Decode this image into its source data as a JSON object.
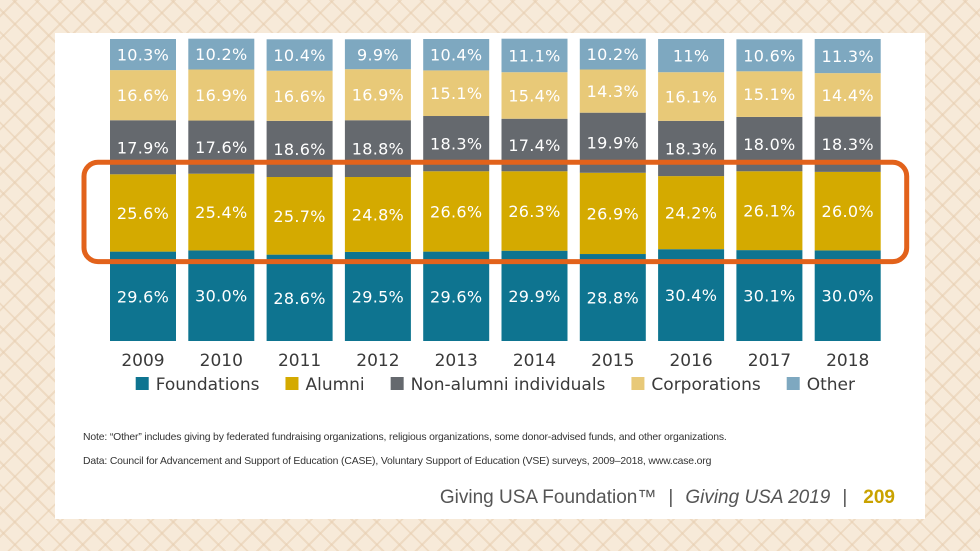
{
  "chart_data": {
    "type": "bar",
    "stacked": true,
    "categories": [
      "2009",
      "2010",
      "2011",
      "2012",
      "2013",
      "2014",
      "2015",
      "2016",
      "2017",
      "2018"
    ],
    "series": [
      {
        "name": "Foundations",
        "color": "#0e7490",
        "values": [
          29.6,
          30.0,
          28.6,
          29.5,
          29.6,
          29.9,
          28.8,
          30.4,
          30.1,
          30.0
        ],
        "labels": [
          "29.6%",
          "30.0%",
          "28.6%",
          "29.5%",
          "29.6%",
          "29.9%",
          "28.8%",
          "30.4%",
          "30.1%",
          "30.0%"
        ]
      },
      {
        "name": "Alumni",
        "color": "#d4aa00",
        "values": [
          25.6,
          25.4,
          25.7,
          24.8,
          26.6,
          26.3,
          26.9,
          24.2,
          26.1,
          26.0
        ],
        "labels": [
          "25.6%",
          "25.4%",
          "25.7%",
          "24.8%",
          "26.6%",
          "26.3%",
          "26.9%",
          "24.2%",
          "26.1%",
          "26.0%"
        ]
      },
      {
        "name": "Non-alumni individuals",
        "color": "#65696e",
        "values": [
          17.9,
          17.6,
          18.6,
          18.8,
          18.3,
          17.4,
          19.9,
          18.3,
          18.0,
          18.3
        ],
        "labels": [
          "17.9%",
          "17.6%",
          "18.6%",
          "18.8%",
          "18.3%",
          "17.4%",
          "19.9%",
          "18.3%",
          "18.0%",
          "18.3%"
        ]
      },
      {
        "name": "Corporations",
        "color": "#e8c978",
        "values": [
          16.6,
          16.9,
          16.6,
          16.9,
          15.1,
          15.4,
          14.3,
          16.1,
          15.1,
          14.4
        ],
        "labels": [
          "16.6%",
          "16.9%",
          "16.6%",
          "16.9%",
          "15.1%",
          "15.4%",
          "14.3%",
          "16.1%",
          "15.1%",
          "14.4%"
        ]
      },
      {
        "name": "Other",
        "color": "#7ea8c0",
        "values": [
          10.3,
          10.2,
          10.4,
          9.9,
          10.4,
          11.1,
          10.2,
          11.0,
          10.6,
          11.3
        ],
        "labels": [
          "10.3%",
          "10.2%",
          "10.4%",
          "9.9%",
          "10.4%",
          "11.1%",
          "10.2%",
          "11%",
          "10.6%",
          "11.3%"
        ]
      }
    ],
    "ylim": [
      0,
      100
    ],
    "grid": false,
    "legend_position": "bottom",
    "highlight": {
      "series": "Alumni",
      "color": "#e2621b"
    }
  },
  "notes": {
    "note": "Note: “Other” includes giving by federated fundraising organizations, religious organizations, some donor-advised funds, and other organizations.",
    "data": "Data: Council for Advancement and Support of Education (CASE), Voluntary Support of Education (VSE) surveys, 2009–2018, www.case.org"
  },
  "footer": {
    "org": "Giving USA Foundation™",
    "separator": "|",
    "publication": "Giving USA 2019",
    "page": "209"
  }
}
